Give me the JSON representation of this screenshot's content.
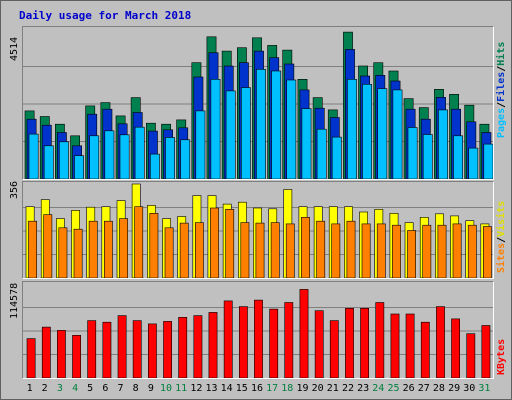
{
  "title": "Daily usage for March 2018",
  "axes": {
    "hits_max_label": "4514",
    "visits_max_label": "356",
    "kbytes_max_label": "114578"
  },
  "legend": {
    "pages": "Pages",
    "files": "Files",
    "hits": "Hits",
    "sites": "Sites",
    "visits": "Visits",
    "kbytes": "KBytes",
    "sep": "/"
  },
  "colors": {
    "hits": "#007f4f",
    "files": "#0033cc",
    "pages": "#00c0ff",
    "visits": "#ffff00",
    "sites": "#ff8000",
    "kbytes": "#ff0000",
    "weekend_day": "#00803f",
    "weekday": "#000000"
  },
  "chart_data": [
    {
      "type": "bar",
      "title": "",
      "categories": [
        "1",
        "2",
        "3",
        "4",
        "5",
        "6",
        "7",
        "8",
        "9",
        "10",
        "11",
        "12",
        "13",
        "14",
        "15",
        "16",
        "17",
        "18",
        "19",
        "20",
        "21",
        "22",
        "23",
        "24",
        "25",
        "26",
        "27",
        "28",
        "29",
        "30",
        "31"
      ],
      "ylim": [
        0,
        4514
      ],
      "series": [
        {
          "name": "Hits",
          "values": [
            2050,
            1880,
            1650,
            1300,
            2200,
            2300,
            1900,
            2450,
            1680,
            1650,
            1780,
            3500,
            4280,
            3850,
            3950,
            4250,
            4020,
            3880,
            3000,
            2450,
            2080,
            4420,
            3400,
            3500,
            3250,
            2420,
            2150,
            2700,
            2550,
            2220,
            1650
          ]
        },
        {
          "name": "Files",
          "values": [
            1800,
            1620,
            1400,
            1000,
            1950,
            2100,
            1660,
            2000,
            1440,
            1480,
            1540,
            3070,
            3800,
            3400,
            3500,
            3850,
            3650,
            3460,
            2680,
            2130,
            1850,
            3900,
            3100,
            3120,
            2950,
            2100,
            1800,
            2460,
            2100,
            1720,
            1400
          ]
        },
        {
          "name": "Pages",
          "values": [
            1350,
            1000,
            1120,
            700,
            1300,
            1450,
            1330,
            1560,
            750,
            1250,
            1180,
            2050,
            3000,
            2650,
            2750,
            3300,
            3250,
            2980,
            2120,
            1500,
            1260,
            3000,
            2850,
            2720,
            2680,
            1550,
            1340,
            2080,
            1300,
            930,
            1050
          ]
        }
      ]
    },
    {
      "type": "bar",
      "title": "",
      "categories": [
        "1",
        "2",
        "3",
        "4",
        "5",
        "6",
        "7",
        "8",
        "9",
        "10",
        "11",
        "12",
        "13",
        "14",
        "15",
        "16",
        "17",
        "18",
        "19",
        "20",
        "21",
        "22",
        "23",
        "24",
        "25",
        "26",
        "27",
        "28",
        "29",
        "30",
        "31"
      ],
      "ylim": [
        0,
        356
      ],
      "series": [
        {
          "name": "Visits",
          "values": [
            270,
            297,
            225,
            256,
            268,
            270,
            293,
            356,
            275,
            225,
            233,
            312,
            312,
            280,
            287,
            265,
            262,
            335,
            270,
            270,
            270,
            270,
            250,
            260,
            245,
            210,
            230,
            243,
            235,
            217,
            205
          ]
        },
        {
          "name": "Sites",
          "values": [
            215,
            240,
            190,
            185,
            215,
            215,
            225,
            270,
            245,
            190,
            208,
            210,
            265,
            260,
            210,
            208,
            210,
            205,
            230,
            215,
            205,
            215,
            205,
            205,
            200,
            180,
            200,
            200,
            205,
            200,
            195
          ]
        }
      ]
    },
    {
      "type": "bar",
      "title": "",
      "categories": [
        "1",
        "2",
        "3",
        "4",
        "5",
        "6",
        "7",
        "8",
        "9",
        "10",
        "11",
        "12",
        "13",
        "14",
        "15",
        "16",
        "17",
        "18",
        "19",
        "20",
        "21",
        "22",
        "23",
        "24",
        "25",
        "26",
        "27",
        "28",
        "29",
        "30",
        "31"
      ],
      "ylim": [
        0,
        114578
      ],
      "series": [
        {
          "name": "KBytes",
          "values": [
            48000,
            62000,
            58000,
            52000,
            70000,
            68000,
            76000,
            70000,
            66000,
            69000,
            74000,
            76000,
            80000,
            94000,
            87000,
            95000,
            84000,
            92000,
            108000,
            82000,
            70000,
            85000,
            85000,
            92000,
            78000,
            78000,
            68000,
            87000,
            72000,
            54000,
            64000
          ]
        }
      ]
    }
  ],
  "days": [
    "1",
    "2",
    "3",
    "4",
    "5",
    "6",
    "7",
    "8",
    "9",
    "10",
    "11",
    "12",
    "13",
    "14",
    "15",
    "16",
    "17",
    "18",
    "19",
    "20",
    "21",
    "22",
    "23",
    "24",
    "25",
    "26",
    "27",
    "28",
    "29",
    "30",
    "31"
  ],
  "weekend_days": [
    3,
    4,
    10,
    11,
    17,
    18,
    24,
    25,
    31
  ]
}
